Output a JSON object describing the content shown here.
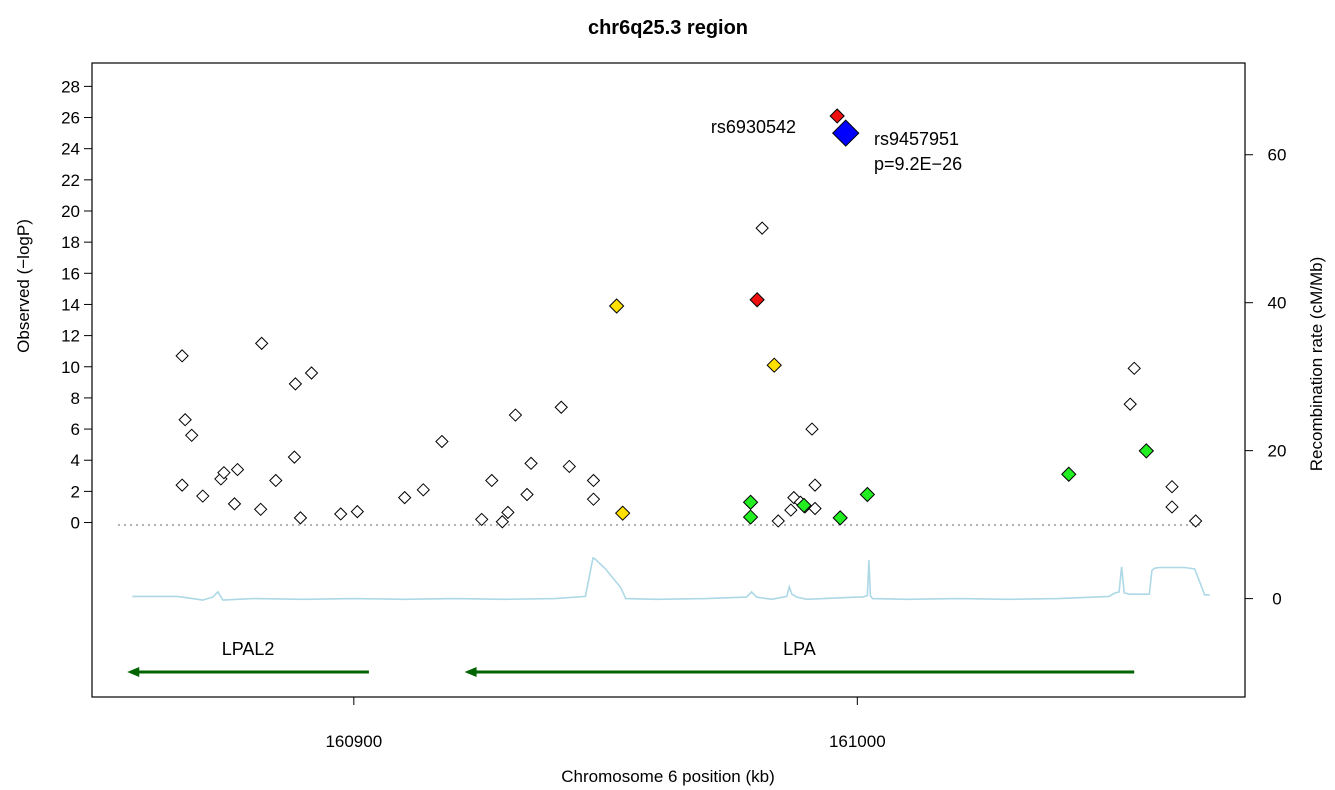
{
  "chart_data": {
    "type": "scatter",
    "title": "chr6q25.3 region",
    "xlabel": "Chromosome 6 position (kb)",
    "ylabel": "Observed (−logP)",
    "y2label": "Recombination rate (cM/Mb)",
    "xlim": [
      160848,
      161077
    ],
    "ylim": [
      -11.2,
      29.5
    ],
    "y2lim": [
      -13.3,
      72.4
    ],
    "x_ticks": [
      160900,
      161000
    ],
    "y_ticks": [
      0,
      2,
      4,
      6,
      8,
      10,
      12,
      14,
      16,
      18,
      20,
      22,
      24,
      26,
      28
    ],
    "y2_ticks": [
      0,
      20,
      40,
      60
    ],
    "reference_line_y": 0,
    "colors": {
      "white": "#ffffff",
      "red": "#ee1111",
      "yellow": "#ffe000",
      "green": "#22ee22",
      "blue": "#0000ff",
      "recombination": "#add8e6",
      "gene": "#006400"
    },
    "snps": [
      {
        "x": 160865.9,
        "y": 10.7,
        "c": "white"
      },
      {
        "x": 160866.5,
        "y": 6.6,
        "c": "white"
      },
      {
        "x": 160867.8,
        "y": 5.6,
        "c": "white"
      },
      {
        "x": 160865.9,
        "y": 2.4,
        "c": "white"
      },
      {
        "x": 160870.0,
        "y": 1.7,
        "c": "white"
      },
      {
        "x": 160873.6,
        "y": 2.8,
        "c": "white"
      },
      {
        "x": 160874.2,
        "y": 3.2,
        "c": "white"
      },
      {
        "x": 160876.3,
        "y": 1.2,
        "c": "white"
      },
      {
        "x": 160876.9,
        "y": 3.4,
        "c": "white"
      },
      {
        "x": 160881.7,
        "y": 11.5,
        "c": "white"
      },
      {
        "x": 160881.5,
        "y": 0.85,
        "c": "white"
      },
      {
        "x": 160884.5,
        "y": 2.7,
        "c": "white"
      },
      {
        "x": 160888.2,
        "y": 4.2,
        "c": "white"
      },
      {
        "x": 160888.4,
        "y": 8.9,
        "c": "white"
      },
      {
        "x": 160889.4,
        "y": 0.3,
        "c": "white"
      },
      {
        "x": 160891.6,
        "y": 9.6,
        "c": "white"
      },
      {
        "x": 160897.4,
        "y": 0.55,
        "c": "white"
      },
      {
        "x": 160900.7,
        "y": 0.7,
        "c": "white"
      },
      {
        "x": 160910.1,
        "y": 1.6,
        "c": "white"
      },
      {
        "x": 160913.8,
        "y": 2.1,
        "c": "white"
      },
      {
        "x": 160917.5,
        "y": 5.2,
        "c": "white"
      },
      {
        "x": 160925.4,
        "y": 0.2,
        "c": "white"
      },
      {
        "x": 160927.4,
        "y": 2.7,
        "c": "white"
      },
      {
        "x": 160929.5,
        "y": 0.05,
        "c": "white"
      },
      {
        "x": 160930.6,
        "y": 0.65,
        "c": "white"
      },
      {
        "x": 160932.1,
        "y": 6.9,
        "c": "white"
      },
      {
        "x": 160934.4,
        "y": 1.8,
        "c": "white"
      },
      {
        "x": 160935.2,
        "y": 3.8,
        "c": "white"
      },
      {
        "x": 160941.2,
        "y": 7.4,
        "c": "white"
      },
      {
        "x": 160942.8,
        "y": 3.6,
        "c": "white"
      },
      {
        "x": 160947.6,
        "y": 2.7,
        "c": "white"
      },
      {
        "x": 160947.6,
        "y": 1.5,
        "c": "white"
      },
      {
        "x": 160952.2,
        "y": 13.9,
        "c": "yellow"
      },
      {
        "x": 160953.4,
        "y": 0.6,
        "c": "yellow"
      },
      {
        "x": 160978.8,
        "y": 1.3,
        "c": "green"
      },
      {
        "x": 160978.8,
        "y": 0.35,
        "c": "green"
      },
      {
        "x": 160980.1,
        "y": 14.3,
        "c": "red"
      },
      {
        "x": 160981.1,
        "y": 18.9,
        "c": "white"
      },
      {
        "x": 160983.5,
        "y": 10.1,
        "c": "yellow"
      },
      {
        "x": 160984.3,
        "y": 0.1,
        "c": "white"
      },
      {
        "x": 160986.8,
        "y": 0.8,
        "c": "white"
      },
      {
        "x": 160987.4,
        "y": 1.6,
        "c": "white"
      },
      {
        "x": 160988.7,
        "y": 1.3,
        "c": "white"
      },
      {
        "x": 160989.6,
        "y": 1.0,
        "c": "white"
      },
      {
        "x": 160989.4,
        "y": 1.1,
        "c": "green"
      },
      {
        "x": 160991.0,
        "y": 6.0,
        "c": "white"
      },
      {
        "x": 160991.6,
        "y": 2.4,
        "c": "white"
      },
      {
        "x": 160991.6,
        "y": 0.9,
        "c": "white"
      },
      {
        "x": 160996.0,
        "y": 26.1,
        "c": "red"
      },
      {
        "x": 160996.6,
        "y": 0.3,
        "c": "green"
      },
      {
        "x": 161002.0,
        "y": 1.8,
        "c": "green"
      },
      {
        "x": 161042.0,
        "y": 3.1,
        "c": "green"
      },
      {
        "x": 161055.0,
        "y": 9.9,
        "c": "white"
      },
      {
        "x": 161054.2,
        "y": 7.6,
        "c": "white"
      },
      {
        "x": 161057.4,
        "y": 4.6,
        "c": "green"
      },
      {
        "x": 161062.5,
        "y": 2.3,
        "c": "white"
      },
      {
        "x": 161062.5,
        "y": 1.0,
        "c": "white"
      },
      {
        "x": 161067.2,
        "y": 0.1,
        "c": "white"
      },
      {
        "x": 160997.7,
        "y": 25.0,
        "c": "blue",
        "lead": true
      }
    ],
    "recombination": {
      "x": [
        160856,
        160865,
        160870,
        160872,
        160873,
        160874,
        160880,
        160890,
        160900,
        160910,
        160920,
        160930,
        160940,
        160946,
        160947.5,
        160948,
        160950,
        160953,
        160954,
        160960,
        160970,
        160978,
        160979,
        160980,
        160983,
        160986,
        160986.5,
        160987,
        160988,
        160990,
        161000,
        161001,
        161002,
        161002.3,
        161002.6,
        161003,
        161010,
        161020,
        161030,
        161040,
        161050,
        161051,
        161052,
        161052.5,
        161053,
        161054,
        161056,
        161058,
        161058.5,
        161059,
        161060,
        161062,
        161065,
        161067,
        161069,
        161070
      ],
      "y": [
        0.3,
        0.3,
        -0.2,
        0.2,
        0.9,
        -0.2,
        0.0,
        -0.1,
        0.0,
        -0.1,
        0.0,
        -0.1,
        0.0,
        0.3,
        5.5,
        5.3,
        4.0,
        1.5,
        0.0,
        -0.1,
        0.0,
        0.2,
        0.9,
        0.2,
        -0.1,
        0.3,
        1.6,
        0.6,
        0.2,
        -0.1,
        0.2,
        0.2,
        0.4,
        5.2,
        0.4,
        0.0,
        -0.1,
        0.0,
        -0.1,
        0.0,
        0.3,
        0.7,
        0.9,
        4.3,
        0.8,
        0.6,
        0.6,
        0.6,
        3.8,
        4.1,
        4.2,
        4.2,
        4.2,
        4.0,
        0.5,
        0.5
      ]
    },
    "genes": [
      {
        "name": "LPAL2",
        "start": 160903,
        "end": 160855
      },
      {
        "name": "LPA",
        "start": 161055,
        "end": 160922
      }
    ],
    "annotations": [
      {
        "text": "rs6930542"
      },
      {
        "text": "rs9457951"
      },
      {
        "text": "p=9.2E−26"
      }
    ]
  }
}
